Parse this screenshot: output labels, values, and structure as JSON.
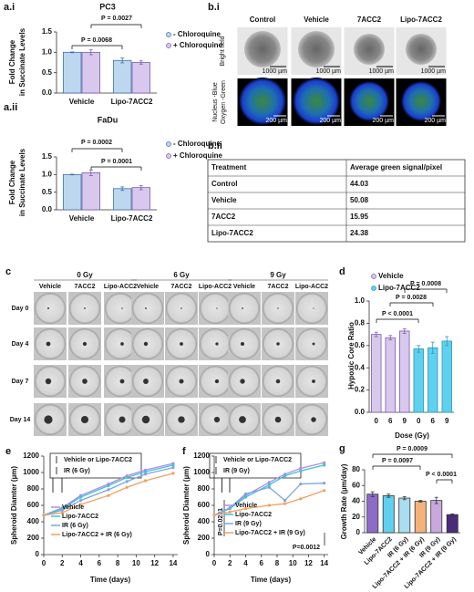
{
  "panel_labels": [
    "a.i",
    "a.ii",
    "b.i",
    "b.ii",
    "c",
    "d",
    "e",
    "f",
    "g"
  ],
  "microscopy": {
    "columns": [
      "Control",
      "Vehicle",
      "7ACC2",
      "Lipo-7ACC2"
    ],
    "rows": [
      [
        "Bright field"
      ],
      [
        "Nucleus -Blue",
        "Oxygen -Green"
      ]
    ],
    "scale_bars": [
      "1000 µm",
      "200 µm"
    ]
  },
  "table": {
    "header": [
      "Treatment",
      "Average green signal/pixel"
    ],
    "rows": [
      [
        "Control",
        44.03
      ],
      [
        "Vehicle",
        50.08
      ],
      [
        "7ACC2",
        15.95
      ],
      [
        "Lipo-7ACC2",
        24.38
      ]
    ]
  },
  "spheroid_grid": {
    "doses": [
      "0 Gy",
      "6 Gy",
      "9 Gy"
    ],
    "treatments": [
      "Vehicle",
      "7ACC2",
      "Lipo-ACC2"
    ],
    "days": [
      "Day 0",
      "Day 4",
      "Day 7",
      "Day 14"
    ]
  },
  "chart_data": [
    {
      "type": "bar",
      "title": "PC3",
      "ylabel": [
        "Fold Change",
        "in Succinate Levels"
      ],
      "categories": [
        "Vehicle",
        "Lipo-7ACC2"
      ],
      "series": [
        {
          "name": "- Chloroquine",
          "color": "#bdd7ee",
          "edge": "#3d6fb0",
          "values": [
            1.0,
            0.8
          ],
          "errors": [
            0.01,
            0.06
          ]
        },
        {
          "name": "+ Chloroquine",
          "color": "#d9c8ee",
          "edge": "#7b5cb0",
          "values": [
            1.0,
            0.75
          ],
          "errors": [
            0.06,
            0.04
          ]
        }
      ],
      "ylim": [
        0,
        1.5
      ],
      "yticks": [
        {
          "value": 0,
          "label": "0.0"
        },
        0.5,
        {
          "value": 1,
          "label": "1.0"
        },
        1.5
      ],
      "annotations": [
        "P = 0.0068",
        "P = 0.0027"
      ],
      "legend": "right"
    },
    {
      "type": "bar",
      "title": "FaDu",
      "ylabel": [
        "Fold Change",
        "in Succinate Levels"
      ],
      "categories": [
        "Vehicle",
        "Lipo-7ACC2"
      ],
      "series": [
        {
          "name": "- Chloroquine",
          "color": "#bdd7ee",
          "edge": "#3d6fb0",
          "values": [
            1.0,
            0.6
          ],
          "errors": [
            0.01,
            0.05
          ]
        },
        {
          "name": "+ Chloroquine",
          "color": "#d9c8ee",
          "edge": "#7b5cb0",
          "values": [
            1.05,
            0.63
          ],
          "errors": [
            0.08,
            0.06
          ]
        }
      ],
      "ylim": [
        0,
        1.5
      ],
      "yticks": [
        {
          "value": 0,
          "label": "0.0"
        },
        0.5,
        {
          "value": 1,
          "label": "1.0"
        },
        1.5
      ],
      "annotations": [
        "P = 0.0002",
        "P = 0.0001"
      ],
      "legend": "right"
    },
    {
      "type": "bar",
      "ylabel": [
        "Hypoxic Core Ratio"
      ],
      "xlabel": "Dose (Gy)",
      "categories": [
        "0",
        "6",
        "9",
        "0",
        "6",
        "9"
      ],
      "series": [
        {
          "name": "Vehicle",
          "color": "#d9c8ee",
          "edge": "#7b5cb0",
          "values": [
            0.7,
            0.67,
            0.73,
            null,
            null,
            null
          ],
          "errors": [
            0.02,
            0.02,
            0.02,
            null,
            null,
            null
          ]
        },
        {
          "name": "Lipo-7ACC2",
          "color": "#5fd0ee",
          "edge": "#2a9ac0",
          "values": [
            null,
            null,
            null,
            0.57,
            0.58,
            0.64
          ],
          "errors": [
            null,
            null,
            null,
            0.03,
            0.05,
            0.04
          ]
        }
      ],
      "ylim": [
        0,
        1
      ],
      "yticks": [
        {
          "value": 0,
          "label": "0.0"
        },
        0.2,
        0.4,
        0.6,
        0.8,
        {
          "value": 1,
          "label": "1.0"
        }
      ],
      "annotations": [
        "P < 0.0001",
        "P = 0.0028",
        "P = 0.0008"
      ],
      "legend": "top"
    },
    {
      "type": "line",
      "ylabel": [
        "Spheroid Diamter (µm)"
      ],
      "xlabel": "Time (days)",
      "x": [
        0,
        2,
        4,
        7,
        9,
        11,
        14
      ],
      "series": [
        {
          "name": "Vehicle",
          "color": "#b48be0",
          "values": [
            480,
            570,
            720,
            860,
            960,
            1030,
            1110
          ]
        },
        {
          "name": "Lipo-7ACC2",
          "color": "#3cc0e0",
          "values": [
            480,
            560,
            700,
            840,
            940,
            1010,
            1090
          ]
        },
        {
          "name": "IR (6 Gy)",
          "color": "#7aa7e0",
          "values": [
            480,
            540,
            660,
            790,
            890,
            980,
            1060
          ]
        },
        {
          "name": "Lipo-7ACC2 + IR (6 Gy)",
          "color": "#f0a060",
          "values": [
            480,
            510,
            610,
            720,
            820,
            900,
            990
          ]
        }
      ],
      "xlim": [
        0,
        14.5
      ],
      "xticks": [
        0,
        2,
        4,
        6,
        8,
        10,
        12,
        14
      ],
      "ylim": [
        0,
        1200
      ],
      "yticks": [
        0,
        200,
        400,
        600,
        800,
        1000,
        1200
      ],
      "notes": [
        "Vehicle or Lipo-7ACC2",
        "IR (6 Gy)"
      ],
      "legend": "lower right"
    },
    {
      "type": "line",
      "ylabel": [
        "Spheroid Diamter (µm)"
      ],
      "xlabel": "Time (days)",
      "x": [
        0,
        2,
        4,
        7,
        9,
        11,
        14
      ],
      "series": [
        {
          "name": "Vehicle",
          "color": "#b48be0",
          "values": [
            480,
            570,
            720,
            880,
            980,
            1050,
            1120
          ]
        },
        {
          "name": "Lipo-7ACC2",
          "color": "#3cc0e0",
          "values": [
            480,
            560,
            700,
            850,
            960,
            1020,
            1090
          ]
        },
        {
          "name": "IR (9 Gy)",
          "color": "#7aa7e0",
          "values": [
            480,
            570,
            740,
            820,
            660,
            860,
            870
          ]
        },
        {
          "name": "Lipo-7ACC2 + IR (9 Gy)",
          "color": "#f0a060",
          "values": [
            480,
            520,
            560,
            600,
            620,
            680,
            780
          ]
        }
      ],
      "xlim": [
        0,
        14.5
      ],
      "xticks": [
        0,
        2,
        4,
        6,
        8,
        10,
        12,
        14
      ],
      "ylim": [
        0,
        1200
      ],
      "yticks": [
        0,
        200,
        400,
        600,
        800,
        1000,
        1200
      ],
      "notes": [
        "Vehicle or Lipo-7ACC2",
        "IR (9 Gy)"
      ],
      "annotations": [
        "P=0.0231",
        "P=0.0012"
      ],
      "legend": "lower right"
    },
    {
      "type": "bar",
      "ylabel": [
        "Growth Rate (µm/day)"
      ],
      "categories": [
        "Vehicle",
        "Lipo-7ACC2",
        "IR (6 Gy)",
        "Lipo-7ACC2 + IR (6 Gy)",
        "IR (9 Gy)",
        "Lipo-7ACC2 + IR (9 Gy)"
      ],
      "values": [
        49,
        47,
        44,
        40,
        41,
        23
      ],
      "errors": [
        3,
        2,
        2,
        1,
        4,
        1
      ],
      "colors": [
        "#8c6cc8",
        "#5fd0ee",
        "#a8def0",
        "#f6b27a",
        "#c9a8e0",
        "#4b2a7b"
      ],
      "edge": "#333333",
      "ylim": [
        0,
        80
      ],
      "yticks": [
        0,
        20,
        40,
        60,
        80
      ],
      "annotations": [
        "P = 0.0009",
        "P = 0.0097",
        "P < 0.0001"
      ]
    }
  ]
}
